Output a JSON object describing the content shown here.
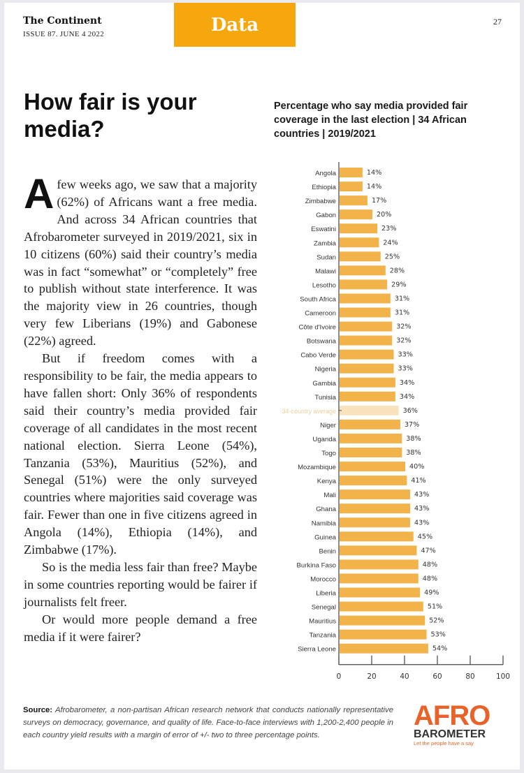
{
  "header": {
    "publication": "The Continent",
    "issue": "ISSUE 87. JUNE 4 2022",
    "section": "Data",
    "page_number": "27"
  },
  "article": {
    "headline": "How fair is your media?",
    "drop_cap": "A",
    "paragraphs": [
      "few weeks ago, we saw that a majority (62%) of Africans want a free media.  And across 34 African countries that Afrobarometer surveyed in 2019/2021, six in 10 citizens (60%) said their country’s media was in fact “somewhat” or “completely” free to publish without state interference. It was the majority view in 26 countries, though very few Liberians (19%) and Gabonese (22%) agreed.",
      "But if freedom comes with a responsibility to be fair, the media appears to have fallen short: Only 36% of respondents said their country’s media provided fair coverage of all candidates in the most recent national election. Sierra Leone (54%), Tanzania (53%), Mauritius (52%), and Senegal (51%) were the only surveyed countries where majorities said coverage was fair. Fewer than one in five citizens agreed in Angola (14%), Ethiopia (14%), and Zimbabwe (17%).",
      "So is the media less fair than free? Maybe in some countries reporting would be fairer if journalists felt freer.",
      "Or would more people demand a free media if it were fairer?"
    ]
  },
  "footer": {
    "source_label": "Source:",
    "source_text": "Afrobarometer, a non-partisan African research network that conducts nationally representative surveys on democracy, governance, and quality of life. Face-to-face interviews with 1,200-2,400 people in each country yield results with a margin of error of +/- two to three percentage points.",
    "logo_top": "AFRO",
    "logo_bottom": "BAROMETER",
    "logo_tagline": "Let the people have a say"
  },
  "colors": {
    "accent": "#f7a70e",
    "bar": "#f2b44a",
    "average_bar": "#f9e3bd",
    "average_label": "#e8cf9c",
    "logo_orange": "#e8632a"
  },
  "chart_data": {
    "type": "bar",
    "orientation": "horizontal",
    "title": "Percentage who say media provided fair coverage in the last election | 34 African countries | 2019/2021",
    "categories": [
      "Angola",
      "Ethiopia",
      "Zimbabwe",
      "Gabon",
      "Eswatini",
      "Zambia",
      "Sudan",
      "Malawi",
      "Lesotho",
      "South Africa",
      "Cameroon",
      "Côte d'Ivoire",
      "Botswana",
      "Cabo Verde",
      "Nigeria",
      "Gambia",
      "Tunisia",
      "34-country average",
      "Niger",
      "Uganda",
      "Togo",
      "Mozambique",
      "Kenya",
      "Mali",
      "Ghana",
      "Namibia",
      "Guinea",
      "Benin",
      "Burkina Faso",
      "Morocco",
      "Liberia",
      "Senegal",
      "Mauritius",
      "Tanzania",
      "Sierra Leone"
    ],
    "values": [
      14,
      14,
      17,
      20,
      23,
      24,
      25,
      28,
      29,
      31,
      31,
      32,
      32,
      33,
      33,
      34,
      34,
      36,
      37,
      38,
      38,
      40,
      41,
      43,
      43,
      43,
      45,
      47,
      48,
      48,
      49,
      51,
      52,
      53,
      54
    ],
    "highlight": "34-country average",
    "value_suffix": "%",
    "xlim": [
      0,
      100
    ],
    "xticks": [
      0,
      20,
      40,
      60,
      80,
      100
    ],
    "xlabel": "",
    "ylabel": "",
    "grid": false,
    "legend": "none"
  }
}
